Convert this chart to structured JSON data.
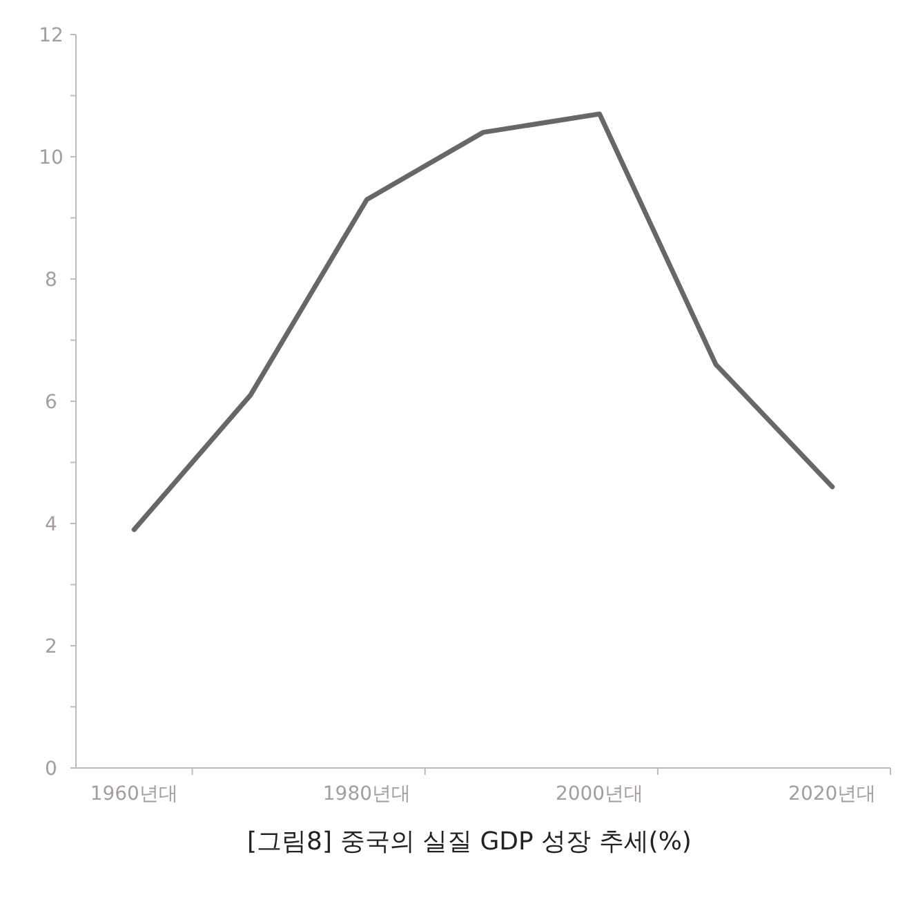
{
  "chart_data": {
    "type": "line",
    "title": "[그림8] 중국의 실질 GDP 성장 추세(%)",
    "categories": [
      "1960년대",
      null,
      "1980년대",
      null,
      "2000년대",
      null,
      "2020년대"
    ],
    "series": [
      {
        "color": "#676767",
        "values": [
          3.9,
          6.1,
          9.3,
          10.4,
          10.7,
          6.6,
          4.6
        ]
      }
    ],
    "ylim": [
      0,
      12
    ],
    "yticks": [
      0,
      {
        "value": 1,
        "label": null
      },
      2,
      {
        "value": 3,
        "label": null
      },
      4,
      {
        "value": 5,
        "label": null
      },
      6,
      {
        "value": 7,
        "label": null
      },
      8,
      {
        "value": 9,
        "label": null
      },
      10,
      {
        "value": 11,
        "label": null
      },
      12
    ],
    "marker": "none",
    "line_style": "solid"
  }
}
